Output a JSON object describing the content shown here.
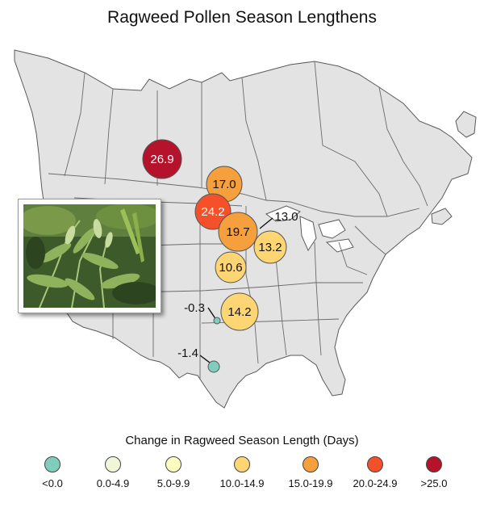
{
  "title": "Ragweed Pollen Season Lengthens",
  "legend": {
    "title": "Change in Ragweed Season Length (Days)",
    "items": [
      {
        "label": "<0.0",
        "color": "#7fcdbb"
      },
      {
        "label": "0.0-4.9",
        "color": "#f0f7d8"
      },
      {
        "label": "5.0-9.9",
        "color": "#fffcc0"
      },
      {
        "label": "10.0-14.9",
        "color": "#fdd673"
      },
      {
        "label": "15.0-19.9",
        "color": "#f5a03c"
      },
      {
        "label": "20.0-24.9",
        "color": "#f4512a"
      },
      {
        "label": ">25.0",
        "color": "#b5122b"
      }
    ]
  },
  "stations": [
    {
      "value": 26.9,
      "label": "26.9",
      "color": "#b5122b"
    },
    {
      "value": 17.0,
      "label": "17.0",
      "color": "#f5a03c"
    },
    {
      "value": 24.2,
      "label": "24.2",
      "color": "#f4512a"
    },
    {
      "value": 19.7,
      "label": "19.7",
      "color": "#f5a03c"
    },
    {
      "value": 13.0,
      "label": "13.0",
      "color": "#fdd673"
    },
    {
      "value": 13.2,
      "label": "13.2",
      "color": "#fdd673"
    },
    {
      "value": 10.6,
      "label": "10.6",
      "color": "#fdd673"
    },
    {
      "value": 14.2,
      "label": "14.2",
      "color": "#fdd673"
    },
    {
      "value": -0.3,
      "label": "-0.3",
      "color": "#7fcdbb"
    },
    {
      "value": -1.4,
      "label": "-1.4",
      "color": "#7fcdbb"
    }
  ],
  "inset_photo": "ragweed-plant-photo"
}
